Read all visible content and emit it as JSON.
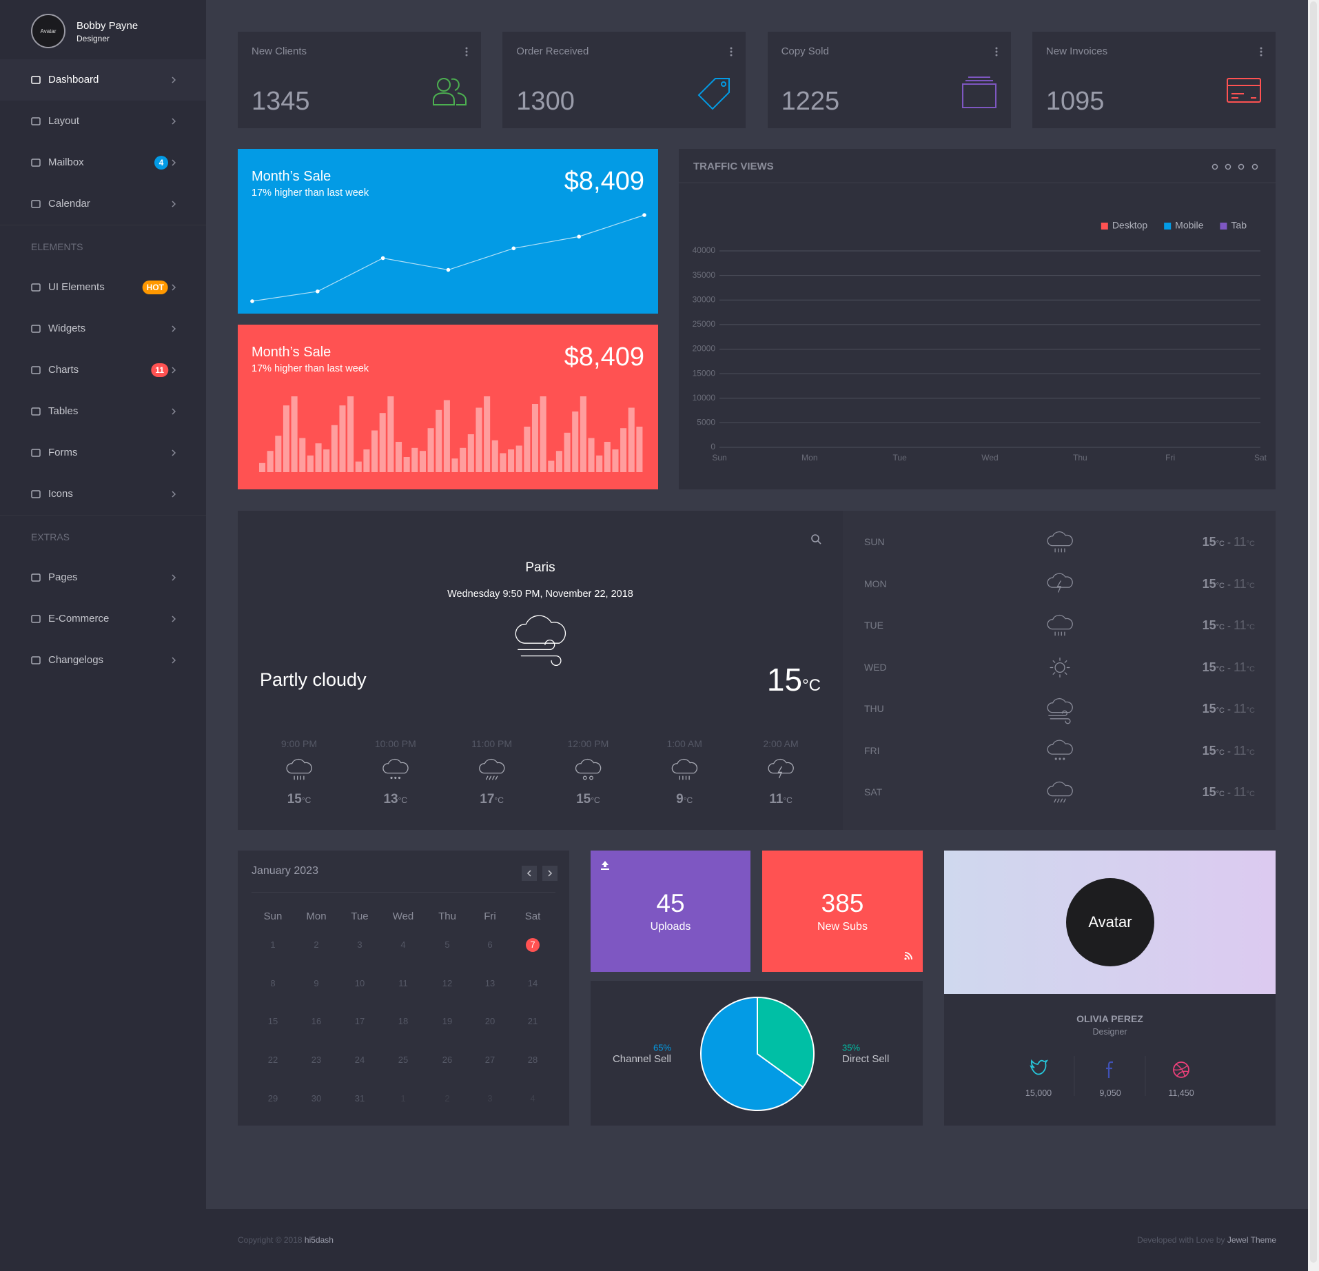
{
  "sidebar": {
    "avatar": "Avatar",
    "name": "Bobby Payne",
    "role": "Designer",
    "groups": [
      {
        "items": [
          {
            "label": "Dashboard"
          },
          {
            "label": "Layout"
          },
          {
            "label": "Mailbox",
            "badge": 4,
            "badge_color": "#039be5"
          },
          {
            "label": "Calendar"
          }
        ]
      },
      {
        "heading": "ELEMENTS",
        "items": [
          {
            "label": "UI Elements",
            "badge": "HOT",
            "badge_color": "#ff9800"
          },
          {
            "label": "Widgets"
          },
          {
            "label": "Charts",
            "badge": 11,
            "badge_color": "#ff5252"
          },
          {
            "label": "Tables"
          },
          {
            "label": "Forms"
          },
          {
            "label": "Icons"
          }
        ]
      },
      {
        "heading": "EXTRAS",
        "items": [
          {
            "label": "Pages"
          },
          {
            "label": "E-Commerce"
          },
          {
            "label": "Changelogs"
          }
        ]
      }
    ]
  },
  "stats": [
    {
      "label": "New Clients",
      "value": 1345,
      "color": "#4caf50"
    },
    {
      "label": "Order Received",
      "value": 1300,
      "color": "#039be5"
    },
    {
      "label": "Copy Sold",
      "value": 1225,
      "color": "#7e57c2"
    },
    {
      "label": "New Invoices",
      "value": 1095,
      "color": "#ff5252"
    }
  ],
  "sales": [
    {
      "title": "Month’s Sale",
      "subtitle": "17% higher than last week",
      "amount": "$8,409"
    },
    {
      "title": "Month’s Sale",
      "subtitle": "17% higher than last week",
      "amount": "$8,409"
    }
  ],
  "chart_data": [
    {
      "type": "line",
      "values": [
        10,
        15,
        32,
        26,
        37,
        43,
        54
      ],
      "color": "#ffffff"
    },
    {
      "type": "bar",
      "values": [
        12,
        28,
        48,
        88,
        100,
        45,
        22,
        38,
        30,
        62,
        88,
        100,
        14,
        30,
        55,
        78,
        100,
        40,
        20,
        32,
        28,
        58,
        82,
        95,
        18,
        32,
        50,
        85,
        100,
        42,
        25,
        30,
        35,
        60,
        90,
        100,
        15,
        28,
        52,
        80,
        100,
        45,
        22,
        40,
        30,
        58,
        85,
        60
      ],
      "color": "#ff9e9e"
    },
    {
      "type": "line",
      "title": "TRAFFIC VIEWS",
      "categories": [
        "Sun",
        "Mon",
        "Tue",
        "Wed",
        "Thu",
        "Fri",
        "Sat"
      ],
      "series": [
        {
          "name": "Desktop",
          "color": "#ff5252",
          "values": [
            null,
            null,
            null,
            null,
            null,
            null,
            null
          ]
        },
        {
          "name": "Mobile",
          "color": "#039be5",
          "values": [
            null,
            null,
            null,
            null,
            null,
            null,
            null
          ]
        },
        {
          "name": "Tab",
          "color": "#7e57c2",
          "values": [
            null,
            null,
            null,
            null,
            null,
            null,
            null
          ]
        }
      ],
      "ylim": [
        0,
        40000
      ],
      "yticks": [
        0,
        5000,
        10000,
        15000,
        20000,
        25000,
        30000,
        35000,
        40000
      ],
      "grid": true,
      "legend": "top-right"
    },
    {
      "type": "pie",
      "categories": [
        "Channel Sell",
        "Direct Sell"
      ],
      "values": [
        65,
        35
      ],
      "value_labels": [
        "65%",
        "35%"
      ],
      "colors": [
        "#039be5",
        "#00bfa5"
      ]
    }
  ],
  "weather": {
    "city": "Paris",
    "datetime": "Wednesday 9:50 PM, November 22, 2018",
    "condition": "Partly cloudy",
    "temp": 15,
    "unit": "°C",
    "separator": "-",
    "hourly": [
      {
        "time": "9:00 PM",
        "temp": 15
      },
      {
        "time": "10:00 PM",
        "temp": 13
      },
      {
        "time": "11:00 PM",
        "temp": 17
      },
      {
        "time": "12:00 PM",
        "temp": 15
      },
      {
        "time": "1:00 AM",
        "temp": 9
      },
      {
        "time": "2:00 AM",
        "temp": 11
      }
    ],
    "daily": [
      {
        "day": "SUN",
        "high": 15,
        "low": 11
      },
      {
        "day": "MON",
        "high": 15,
        "low": 11
      },
      {
        "day": "TUE",
        "high": 15,
        "low": 11
      },
      {
        "day": "WED",
        "high": 15,
        "low": 11
      },
      {
        "day": "THU",
        "high": 15,
        "low": 11
      },
      {
        "day": "FRI",
        "high": 15,
        "low": 11
      },
      {
        "day": "SAT",
        "high": 15,
        "low": 11
      }
    ]
  },
  "calendar": {
    "title": "January 2023",
    "weekdays": [
      "Sun",
      "Mon",
      "Tue",
      "Wed",
      "Thu",
      "Fri",
      "Sat"
    ],
    "weeks": [
      [
        1,
        2,
        3,
        4,
        5,
        6,
        7
      ],
      [
        8,
        9,
        10,
        11,
        12,
        13,
        14
      ],
      [
        15,
        16,
        17,
        18,
        19,
        20,
        21
      ],
      [
        22,
        23,
        24,
        25,
        26,
        27,
        28
      ],
      [
        29,
        30,
        31,
        1,
        2,
        3,
        4
      ]
    ],
    "today": 7
  },
  "tiles": [
    {
      "value": 45,
      "label": "Uploads"
    },
    {
      "value": 385,
      "label": "New Subs"
    }
  ],
  "profile": {
    "avatar": "Avatar",
    "name": "OLIVIA PEREZ",
    "role": "Designer",
    "socials": [
      {
        "count": "15,000"
      },
      {
        "count": "9,050"
      },
      {
        "count": "11,450"
      }
    ]
  },
  "footer": {
    "copyright": "Copyright © 2018",
    "brand": "hi5dash",
    "credit": "Developed with Love by",
    "author": "Jewel Theme"
  }
}
